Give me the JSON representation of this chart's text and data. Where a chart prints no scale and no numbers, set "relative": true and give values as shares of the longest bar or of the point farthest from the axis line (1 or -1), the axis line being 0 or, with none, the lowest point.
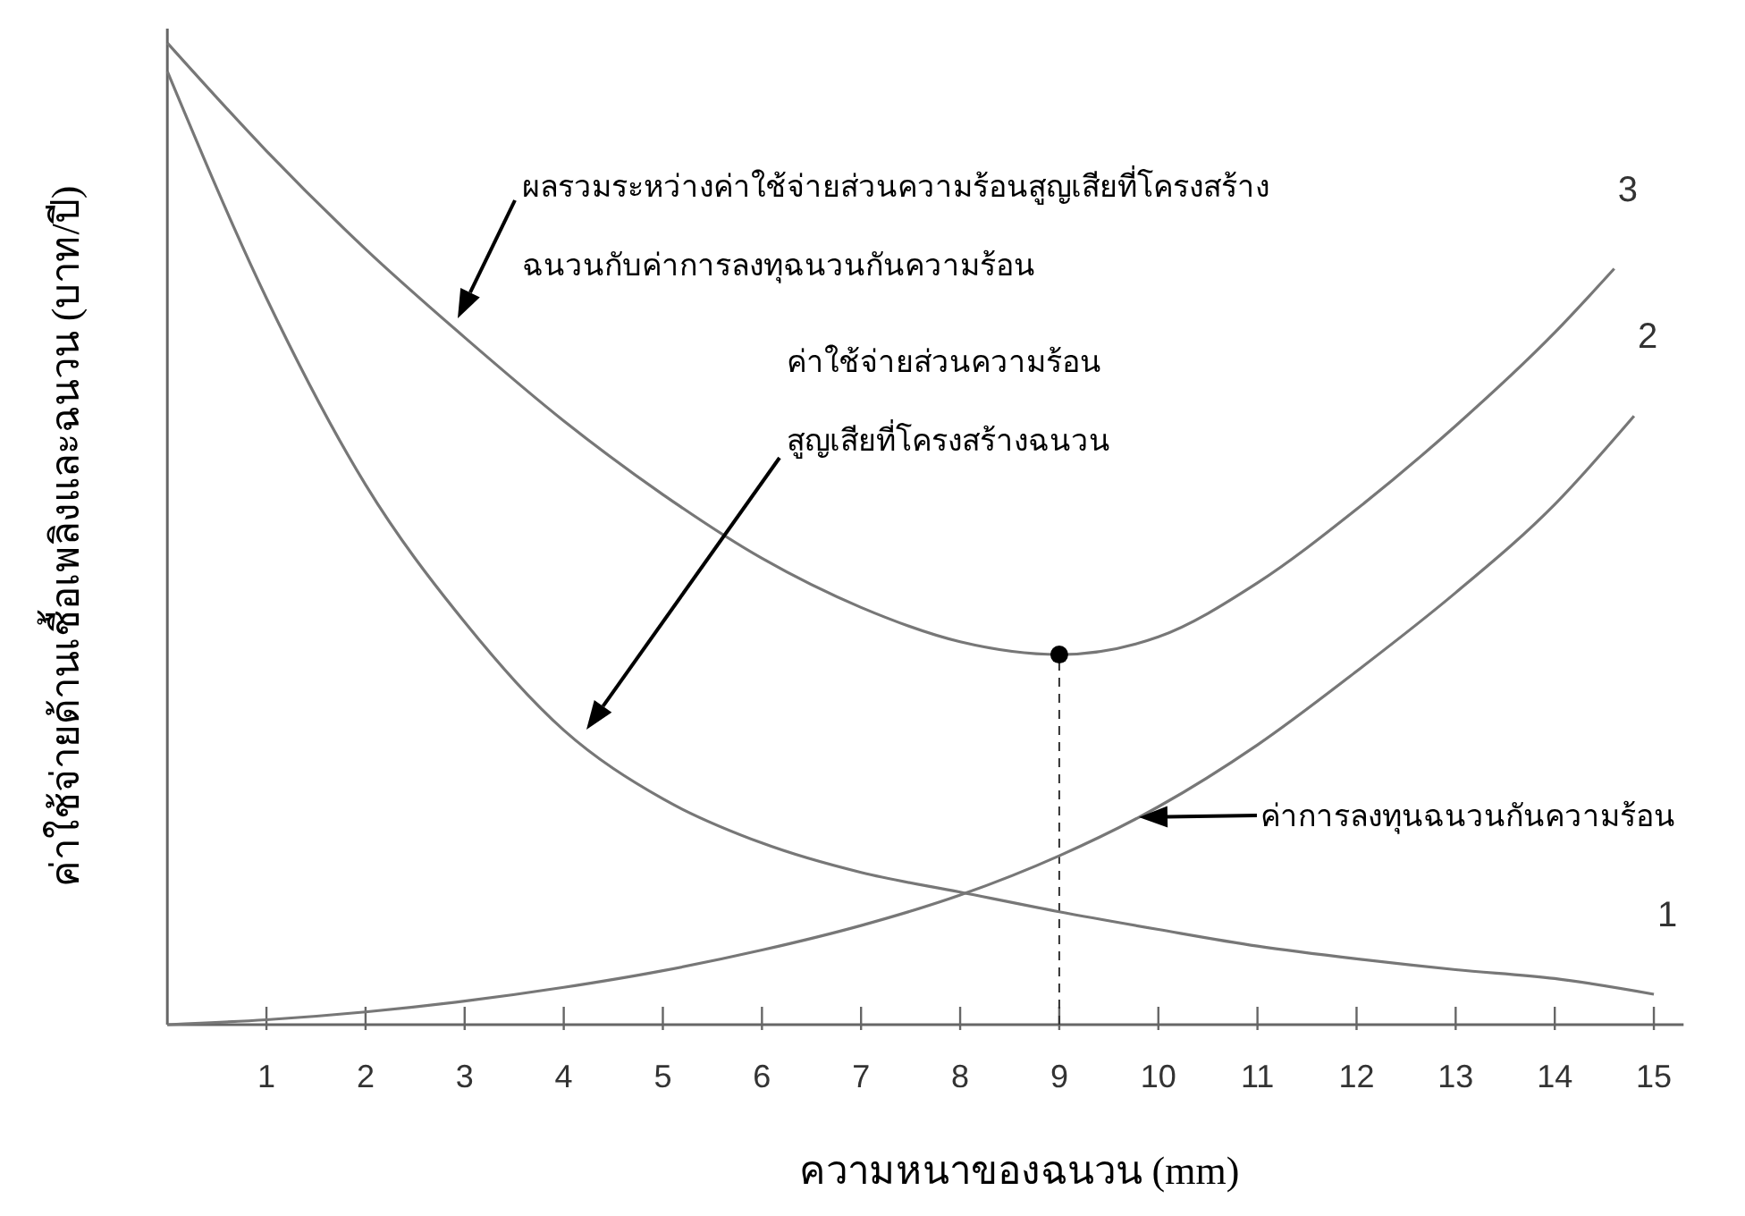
{
  "chart_data": {
    "type": "line",
    "relative": true,
    "xlabel": "ความหนาของฉนวน (mm)",
    "ylabel": "ค่าใช้จ่ายด้านเชื้อเพลิงและฉนวน (บาท/ปี)",
    "xlim": [
      0,
      15.3
    ],
    "xticks": [
      1,
      2,
      3,
      4,
      5,
      6,
      7,
      8,
      9,
      10,
      11,
      12,
      13,
      14,
      15
    ],
    "legend": false,
    "series": [
      {
        "name": "1",
        "color": "#777777",
        "x": [
          0,
          1,
          2,
          3,
          4,
          5,
          6,
          7,
          8,
          9,
          10,
          11,
          12,
          13,
          14,
          15
        ],
        "values": [
          0.971,
          0.74,
          0.55,
          0.41,
          0.3,
          0.23,
          0.185,
          0.155,
          0.135,
          0.115,
          0.097,
          0.08,
          0.067,
          0.056,
          0.047,
          0.031
        ]
      },
      {
        "name": "2",
        "color": "#777777",
        "x": [
          0,
          1,
          2,
          3,
          4,
          5,
          6,
          7,
          8,
          9,
          10,
          11,
          12,
          13,
          14,
          14.8
        ],
        "values": [
          0,
          0.005,
          0.013,
          0.024,
          0.038,
          0.055,
          0.076,
          0.101,
          0.132,
          0.172,
          0.222,
          0.285,
          0.36,
          0.44,
          0.53,
          0.62
        ]
      },
      {
        "name": "3",
        "color": "#777777",
        "x": [
          0,
          1,
          2,
          3,
          4,
          5,
          6,
          7,
          8,
          9,
          10,
          11,
          12,
          13,
          14,
          14.6
        ],
        "values": [
          1,
          0.89,
          0.79,
          0.7,
          0.615,
          0.54,
          0.475,
          0.425,
          0.39,
          0.377,
          0.395,
          0.45,
          0.525,
          0.61,
          0.705,
          0.77
        ]
      },
      {
        "type": "scatter",
        "color": "#000000",
        "marker": "circle",
        "x": [
          9
        ],
        "values": [
          0.377
        ]
      }
    ],
    "ref_lines": [
      {
        "axis": "x",
        "value": 9,
        "color": "#333333",
        "line_style": "dashed"
      }
    ],
    "annotations": [
      "ผลรวมระหว่างค่าใช้จ่ายส่วนความร้อนสูญเสียที่โครงสร้าง",
      "ฉนวนกับค่าการลงทุฉนวนกันความร้อน",
      "ค่าใช้จ่ายส่วนความร้อน",
      "สูญเสียที่โครงสร้างฉนวน",
      "ค่าการลงทุนฉนวนกันความร้อน"
    ]
  }
}
